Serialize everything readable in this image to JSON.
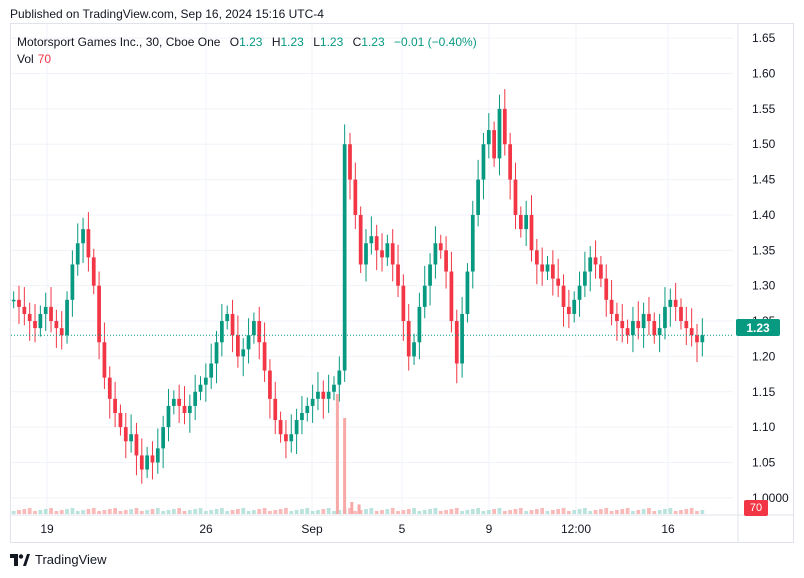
{
  "header": {
    "published": "Published on TradingView.com, Sep 16, 2024 15:16 UTC-4"
  },
  "legend": {
    "symbol": "Motorsport Games Inc., 30, Cboe One",
    "open_label": "O",
    "open": "1.23",
    "high_label": "H",
    "high": "1.23",
    "low_label": "L",
    "low": "1.23",
    "close_label": "C",
    "close": "1.23",
    "change": "−0.01 (−0.40%)",
    "volume_label": "Vol",
    "volume": "70"
  },
  "price_badge": "1.23",
  "volume_badge": "70",
  "footer": {
    "brand": "TradingView"
  },
  "colors": {
    "up": "#089981",
    "down": "#f23645",
    "grid": "#f0f3fa",
    "axis_text": "#131722"
  },
  "chart_data": {
    "type": "candlestick",
    "y_axis_ticks": [
      "1.65",
      "1.60",
      "1.55",
      "1.50",
      "1.45",
      "1.40",
      "1.35",
      "1.30",
      "1.25",
      "1.20",
      "1.15",
      "1.10",
      "1.05",
      "1.0000"
    ],
    "ylim": [
      0.98,
      1.67
    ],
    "x_axis_ticks": [
      "19",
      "26",
      "Sep",
      "5",
      "9",
      "12:00",
      "16"
    ],
    "last_price": 1.23,
    "last_volume": 70,
    "price_path": [
      1.28,
      1.27,
      1.26,
      1.25,
      1.24,
      1.26,
      1.27,
      1.25,
      1.24,
      1.23,
      1.28,
      1.33,
      1.36,
      1.38,
      1.34,
      1.3,
      1.22,
      1.17,
      1.14,
      1.12,
      1.1,
      1.08,
      1.09,
      1.06,
      1.04,
      1.06,
      1.05,
      1.07,
      1.1,
      1.13,
      1.14,
      1.13,
      1.12,
      1.13,
      1.15,
      1.16,
      1.17,
      1.19,
      1.22,
      1.25,
      1.26,
      1.23,
      1.2,
      1.21,
      1.23,
      1.25,
      1.22,
      1.18,
      1.14,
      1.11,
      1.09,
      1.08,
      1.09,
      1.11,
      1.12,
      1.13,
      1.14,
      1.15,
      1.14,
      1.15,
      1.16,
      1.18,
      1.5,
      1.45,
      1.4,
      1.33,
      1.36,
      1.37,
      1.35,
      1.34,
      1.36,
      1.33,
      1.3,
      1.25,
      1.2,
      1.22,
      1.27,
      1.3,
      1.33,
      1.36,
      1.35,
      1.32,
      1.25,
      1.19,
      1.26,
      1.32,
      1.4,
      1.45,
      1.5,
      1.52,
      1.48,
      1.55,
      1.5,
      1.45,
      1.4,
      1.38,
      1.4,
      1.35,
      1.33,
      1.32,
      1.33,
      1.31,
      1.3,
      1.27,
      1.26,
      1.28,
      1.3,
      1.32,
      1.34,
      1.33,
      1.31,
      1.28,
      1.26,
      1.25,
      1.24,
      1.23,
      1.25,
      1.24,
      1.26,
      1.25,
      1.23,
      1.24,
      1.27,
      1.28,
      1.27,
      1.25,
      1.24,
      1.23,
      1.22,
      1.23
    ],
    "volume_spikes": [
      {
        "x": 0.45,
        "v": 1.0
      },
      {
        "x": 0.46,
        "v": 0.8
      },
      {
        "x": 0.47,
        "v": 0.1
      },
      {
        "x": 0.48,
        "v": 0.08
      }
    ]
  }
}
